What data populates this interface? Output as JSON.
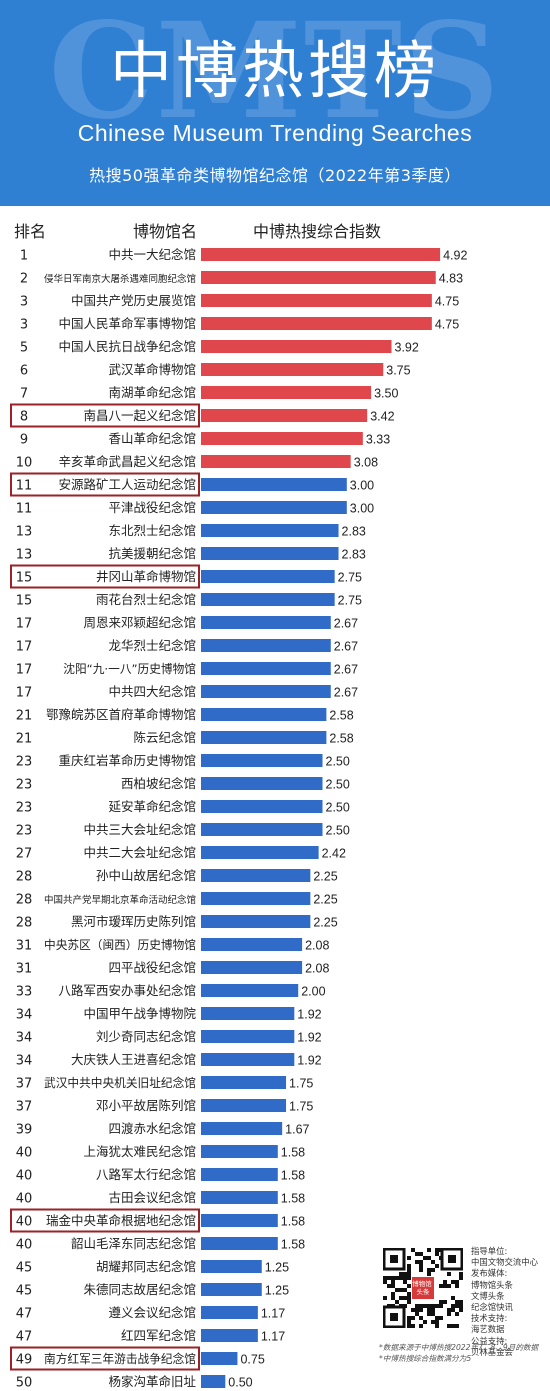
{
  "header": {
    "watermark": "CMTS",
    "title": "中博热搜榜",
    "subtitle_en": "Chinese Museum Trending Searches",
    "subtitle_cn": "热搜50强革命类博物馆纪念馆（2022年第3季度）"
  },
  "columns": {
    "rank": "排名",
    "name": "博物馆名",
    "index": "中博热搜综合指数"
  },
  "colors": {
    "header_bg": "#2f7fd3",
    "bar_top10": "#e0474c",
    "bar_rest": "#2f6bc7",
    "highlight_box": "#9b2226"
  },
  "chart_data": {
    "type": "bar",
    "orientation": "horizontal",
    "rows": [
      {
        "rank": "1",
        "name": "中共一大纪念馆",
        "value": 4.92,
        "highlight": false
      },
      {
        "rank": "2",
        "name": "侵华日军南京大屠杀遇难同胞纪念馆",
        "value": 4.83,
        "highlight": false
      },
      {
        "rank": "3",
        "name": "中国共产党历史展览馆",
        "value": 4.75,
        "highlight": false
      },
      {
        "rank": "3",
        "name": "中国人民革命军事博物馆",
        "value": 4.75,
        "highlight": false
      },
      {
        "rank": "5",
        "name": "中国人民抗日战争纪念馆",
        "value": 3.92,
        "highlight": false
      },
      {
        "rank": "6",
        "name": "武汉革命博物馆",
        "value": 3.75,
        "highlight": false
      },
      {
        "rank": "7",
        "name": "南湖革命纪念馆",
        "value": 3.5,
        "highlight": false
      },
      {
        "rank": "8",
        "name": "南昌八一起义纪念馆",
        "value": 3.42,
        "highlight": true
      },
      {
        "rank": "9",
        "name": "香山革命纪念馆",
        "value": 3.33,
        "highlight": false
      },
      {
        "rank": "10",
        "name": "辛亥革命武昌起义纪念馆",
        "value": 3.08,
        "highlight": false
      },
      {
        "rank": "11",
        "name": "安源路矿工人运动纪念馆",
        "value": 3.0,
        "highlight": true
      },
      {
        "rank": "11",
        "name": "平津战役纪念馆",
        "value": 3.0,
        "highlight": false
      },
      {
        "rank": "13",
        "name": "东北烈士纪念馆",
        "value": 2.83,
        "highlight": false
      },
      {
        "rank": "13",
        "name": "抗美援朝纪念馆",
        "value": 2.83,
        "highlight": false
      },
      {
        "rank": "15",
        "name": "井冈山革命博物馆",
        "value": 2.75,
        "highlight": true
      },
      {
        "rank": "15",
        "name": "雨花台烈士纪念馆",
        "value": 2.75,
        "highlight": false
      },
      {
        "rank": "17",
        "name": "周恩来邓颖超纪念馆",
        "value": 2.67,
        "highlight": false
      },
      {
        "rank": "17",
        "name": "龙华烈士纪念馆",
        "value": 2.67,
        "highlight": false
      },
      {
        "rank": "17",
        "name": "沈阳“九·一八”历史博物馆",
        "value": 2.67,
        "highlight": false
      },
      {
        "rank": "17",
        "name": "中共四大纪念馆",
        "value": 2.67,
        "highlight": false
      },
      {
        "rank": "21",
        "name": "鄂豫皖苏区首府革命博物馆",
        "value": 2.58,
        "highlight": false
      },
      {
        "rank": "21",
        "name": "陈云纪念馆",
        "value": 2.58,
        "highlight": false
      },
      {
        "rank": "23",
        "name": "重庆红岩革命历史博物馆",
        "value": 2.5,
        "highlight": false
      },
      {
        "rank": "23",
        "name": "西柏坡纪念馆",
        "value": 2.5,
        "highlight": false
      },
      {
        "rank": "23",
        "name": "延安革命纪念馆",
        "value": 2.5,
        "highlight": false
      },
      {
        "rank": "23",
        "name": "中共三大会址纪念馆",
        "value": 2.5,
        "highlight": false
      },
      {
        "rank": "27",
        "name": "中共二大会址纪念馆",
        "value": 2.42,
        "highlight": false
      },
      {
        "rank": "28",
        "name": "孙中山故居纪念馆",
        "value": 2.25,
        "highlight": false
      },
      {
        "rank": "28",
        "name": "中国共产党早期北京革命活动纪念馆",
        "value": 2.25,
        "highlight": false
      },
      {
        "rank": "28",
        "name": "黑河市瑷珲历史陈列馆",
        "value": 2.25,
        "highlight": false
      },
      {
        "rank": "31",
        "name": "中央苏区（闽西）历史博物馆",
        "value": 2.08,
        "highlight": false
      },
      {
        "rank": "31",
        "name": "四平战役纪念馆",
        "value": 2.08,
        "highlight": false
      },
      {
        "rank": "33",
        "name": "八路军西安办事处纪念馆",
        "value": 2.0,
        "highlight": false
      },
      {
        "rank": "34",
        "name": "中国甲午战争博物院",
        "value": 1.92,
        "highlight": false
      },
      {
        "rank": "34",
        "name": "刘少奇同志纪念馆",
        "value": 1.92,
        "highlight": false
      },
      {
        "rank": "34",
        "name": "大庆铁人王进喜纪念馆",
        "value": 1.92,
        "highlight": false
      },
      {
        "rank": "37",
        "name": "武汉中共中央机关旧址纪念馆",
        "value": 1.75,
        "highlight": false
      },
      {
        "rank": "37",
        "name": "邓小平故居陈列馆",
        "value": 1.75,
        "highlight": false
      },
      {
        "rank": "39",
        "name": "四渡赤水纪念馆",
        "value": 1.67,
        "highlight": false
      },
      {
        "rank": "40",
        "name": "上海犹太难民纪念馆",
        "value": 1.58,
        "highlight": false
      },
      {
        "rank": "40",
        "name": "八路军太行纪念馆",
        "value": 1.58,
        "highlight": false
      },
      {
        "rank": "40",
        "name": "古田会议纪念馆",
        "value": 1.58,
        "highlight": false
      },
      {
        "rank": "40",
        "name": "瑞金中央革命根据地纪念馆",
        "value": 1.58,
        "highlight": true
      },
      {
        "rank": "40",
        "name": "韶山毛泽东同志纪念馆",
        "value": 1.58,
        "highlight": false
      },
      {
        "rank": "45",
        "name": "胡耀邦同志纪念馆",
        "value": 1.25,
        "highlight": false
      },
      {
        "rank": "45",
        "name": "朱德同志故居纪念馆",
        "value": 1.25,
        "highlight": false
      },
      {
        "rank": "47",
        "name": "遵义会议纪念馆",
        "value": 1.17,
        "highlight": false
      },
      {
        "rank": "47",
        "name": "红四军纪念馆",
        "value": 1.17,
        "highlight": false
      },
      {
        "rank": "49",
        "name": "南方红军三年游击战争纪念馆",
        "value": 0.75,
        "highlight": true
      },
      {
        "rank": "50",
        "name": "杨家沟革命旧址",
        "value": 0.5,
        "highlight": false
      }
    ]
  },
  "footer": {
    "qr_badge": "博物馆头条",
    "credits": [
      "指导单位:",
      "中国文物交流中心",
      "发布媒体:",
      "博物馆头条",
      "文博头条",
      "纪念馆快讯",
      "技术支持:",
      "海艺数据",
      "公益支持:",
      "贝林基金会"
    ],
    "notes": [
      "*数据来源于中博热搜2022年7、8、9月的数据",
      "*中博热搜综合指数满分为5"
    ]
  }
}
